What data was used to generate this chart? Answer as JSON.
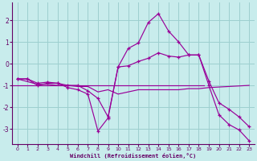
{
  "xlabel": "Windchill (Refroidissement éolien,°C)",
  "background_color": "#c8ecec",
  "line_color": "#990099",
  "grid_color": "#9dcfcf",
  "axis_color": "#660066",
  "xlim": [
    -0.5,
    23.5
  ],
  "ylim": [
    -3.7,
    2.8
  ],
  "xticks": [
    0,
    1,
    2,
    3,
    4,
    5,
    6,
    7,
    8,
    9,
    10,
    11,
    12,
    13,
    14,
    15,
    16,
    17,
    18,
    19,
    20,
    21,
    22,
    23
  ],
  "yticks": [
    -3,
    -2,
    -1,
    0,
    1,
    2
  ],
  "series1_x": [
    0,
    1,
    2,
    3,
    4,
    5,
    6,
    7,
    8,
    9,
    10,
    11,
    12,
    13,
    14,
    15,
    16,
    17,
    18,
    19,
    20,
    21,
    22,
    23
  ],
  "series1_y": [
    -0.7,
    -0.7,
    -1.0,
    -0.9,
    -0.9,
    -1.1,
    -1.2,
    -1.4,
    -3.1,
    -2.5,
    -0.15,
    0.7,
    0.95,
    1.9,
    2.3,
    1.5,
    1.0,
    0.4,
    0.4,
    -1.0,
    -2.35,
    -2.8,
    -3.05,
    -3.55
  ],
  "series2_x": [
    0,
    2,
    3,
    4,
    5,
    6,
    7,
    8,
    9,
    10,
    11,
    12,
    13,
    14,
    15,
    16,
    17,
    18,
    19,
    23
  ],
  "series2_y": [
    -0.7,
    -0.95,
    -0.95,
    -1.0,
    -1.0,
    -1.05,
    -1.05,
    -1.3,
    -1.2,
    -1.4,
    -1.3,
    -1.2,
    -1.2,
    -1.2,
    -1.2,
    -1.2,
    -1.15,
    -1.15,
    -1.1,
    -1.0
  ],
  "series3_x": [
    0,
    1,
    2,
    3,
    4,
    5,
    6,
    7,
    8,
    9,
    10,
    11,
    12,
    13,
    14,
    15,
    16,
    17,
    18,
    19,
    20,
    21,
    22,
    23
  ],
  "series3_y": [
    -0.7,
    -0.7,
    -0.9,
    -0.85,
    -0.9,
    -1.0,
    -1.0,
    -1.25,
    -1.6,
    -2.45,
    -0.15,
    -0.1,
    0.1,
    0.25,
    0.5,
    0.35,
    0.3,
    0.4,
    0.4,
    -0.8,
    -1.8,
    -2.1,
    -2.45,
    -2.9
  ]
}
